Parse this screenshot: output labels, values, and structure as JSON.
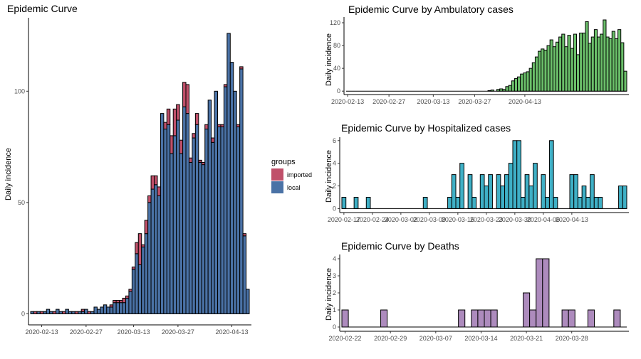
{
  "colors": {
    "local": "#4a72a6",
    "imported": "#c0506a",
    "ambulatory": "#6bbf6a",
    "hospitalized": "#3fb0c6",
    "deaths": "#ad8bbd"
  },
  "legend": {
    "title": "groups",
    "items": [
      {
        "label": "imported",
        "color": "#c0506a"
      },
      {
        "label": "local",
        "color": "#4a72a6"
      }
    ],
    "placement": "right"
  },
  "chart_data": [
    {
      "type": "bar",
      "stacked": true,
      "title": "Epidemic Curve",
      "ylabel": "Daily incidence",
      "xlabel": "",
      "ylim": [
        -5,
        133
      ],
      "yticks": [
        0,
        50,
        100
      ],
      "xticks": [
        "2020-02-13",
        "2020-02-27",
        "2020-03-13",
        "2020-03-27",
        "2020-04-13"
      ],
      "x_start": "2020-02-10",
      "series": [
        {
          "name": "local",
          "values": [
            1,
            0,
            1,
            0,
            1,
            2,
            1,
            0,
            2,
            1,
            0,
            2,
            1,
            1,
            0,
            1,
            1,
            2,
            0,
            1,
            3,
            2,
            3,
            4,
            3,
            3,
            5,
            5,
            5,
            5,
            7,
            10,
            20,
            27,
            22,
            30,
            36,
            50,
            56,
            58,
            53,
            90,
            83,
            85,
            72,
            80,
            87,
            72,
            93,
            90,
            68,
            79,
            85,
            68,
            67,
            83,
            96,
            77,
            100,
            84,
            84,
            102,
            126,
            113,
            100,
            84,
            110,
            35,
            11
          ]
        },
        {
          "name": "imported",
          "values": [
            0,
            1,
            0,
            1,
            0,
            0,
            0,
            1,
            0,
            0,
            1,
            0,
            0,
            0,
            1,
            0,
            1,
            0,
            1,
            0,
            0,
            0,
            0,
            0,
            0,
            1,
            1,
            1,
            1,
            2,
            1,
            1,
            1,
            5,
            14,
            1,
            6,
            3,
            6,
            4,
            4,
            0,
            3,
            7,
            8,
            12,
            7,
            6,
            11,
            13,
            2,
            2,
            5,
            1,
            1,
            2,
            0,
            2,
            0,
            1,
            1,
            1,
            0,
            0,
            0,
            1,
            1,
            1,
            0
          ]
        }
      ]
    },
    {
      "type": "bar",
      "title": "Epidemic Curve by Ambulatory cases",
      "ylabel": "Daily incidence",
      "xlabel": "",
      "ylim": [
        -6,
        130
      ],
      "yticks": [
        0,
        40,
        80,
        120
      ],
      "xticks": [
        "2020-02-13",
        "2020-02-27",
        "2020-03-13",
        "2020-03-27",
        "2020-04-13"
      ],
      "x_start": "2020-02-13",
      "series": [
        {
          "name": "",
          "values": [
            0,
            0,
            0,
            0,
            0,
            0,
            0,
            0,
            0,
            0,
            0,
            0,
            0,
            0,
            0,
            0,
            0,
            0,
            0,
            0,
            0,
            0,
            0,
            0,
            0,
            0,
            0,
            0,
            0,
            0,
            0,
            0,
            0,
            0,
            0,
            0,
            0,
            0,
            0,
            0,
            0,
            0,
            0,
            0,
            0,
            0,
            0,
            0,
            1,
            2,
            0,
            3,
            4,
            3,
            8,
            10,
            18,
            22,
            25,
            30,
            32,
            34,
            40,
            50,
            60,
            70,
            74,
            72,
            80,
            90,
            78,
            86,
            95,
            100,
            78,
            98,
            75,
            100,
            64,
            102,
            102,
            122,
            84,
            95,
            108,
            95,
            100,
            125,
            95,
            92,
            105,
            92,
            108,
            85,
            35
          ]
        }
      ]
    },
    {
      "type": "bar",
      "title": "Epidemic Curve by Hospitalized cases",
      "ylabel": "Daily incidence",
      "xlabel": "",
      "ylim": [
        -0.35,
        6.3
      ],
      "yticks": [
        0,
        2,
        4,
        6
      ],
      "xticks": [
        "2020-02-17",
        "2020-02-24",
        "2020-03-02",
        "2020-03-09",
        "2020-03-16",
        "2020-03-23",
        "2020-03-30",
        "2020-04-06",
        "2020-04-13"
      ],
      "x_start": "2020-02-17",
      "series": [
        {
          "name": "",
          "values": [
            1,
            0,
            0,
            1,
            0,
            0,
            1,
            0,
            0,
            0,
            0,
            0,
            0,
            0,
            0,
            0,
            0,
            0,
            0,
            0,
            1,
            0,
            0,
            0,
            0,
            0,
            1,
            3,
            1,
            4,
            0,
            3,
            1,
            0,
            3,
            2,
            3,
            0,
            3,
            2,
            3,
            4,
            6,
            6,
            1,
            3,
            2,
            4,
            0,
            3,
            1,
            6,
            1,
            0,
            0,
            0,
            3,
            3,
            1,
            2,
            1,
            3,
            1,
            1,
            0,
            0,
            0,
            0,
            2,
            2
          ]
        }
      ]
    },
    {
      "type": "bar",
      "title": "Epidemic Curve by Deaths",
      "ylabel": "Daily incidence",
      "xlabel": "",
      "ylim": [
        -0.25,
        4.25
      ],
      "yticks": [
        0,
        1,
        2,
        3,
        4
      ],
      "xticks": [
        "2020-02-22",
        "2020-02-29",
        "2020-03-07",
        "2020-03-14",
        "2020-03-21",
        "2020-03-28"
      ],
      "x_start": "2020-02-22",
      "series": [
        {
          "name": "",
          "values": [
            1,
            0,
            0,
            0,
            0,
            0,
            1,
            0,
            0,
            0,
            0,
            0,
            0,
            0,
            0,
            0,
            0,
            0,
            1,
            0,
            1,
            1,
            1,
            1,
            0,
            0,
            0,
            0,
            2,
            1,
            4,
            4,
            0,
            0,
            1,
            1,
            0,
            0,
            1,
            0,
            0,
            0,
            1,
            0
          ]
        }
      ]
    }
  ]
}
